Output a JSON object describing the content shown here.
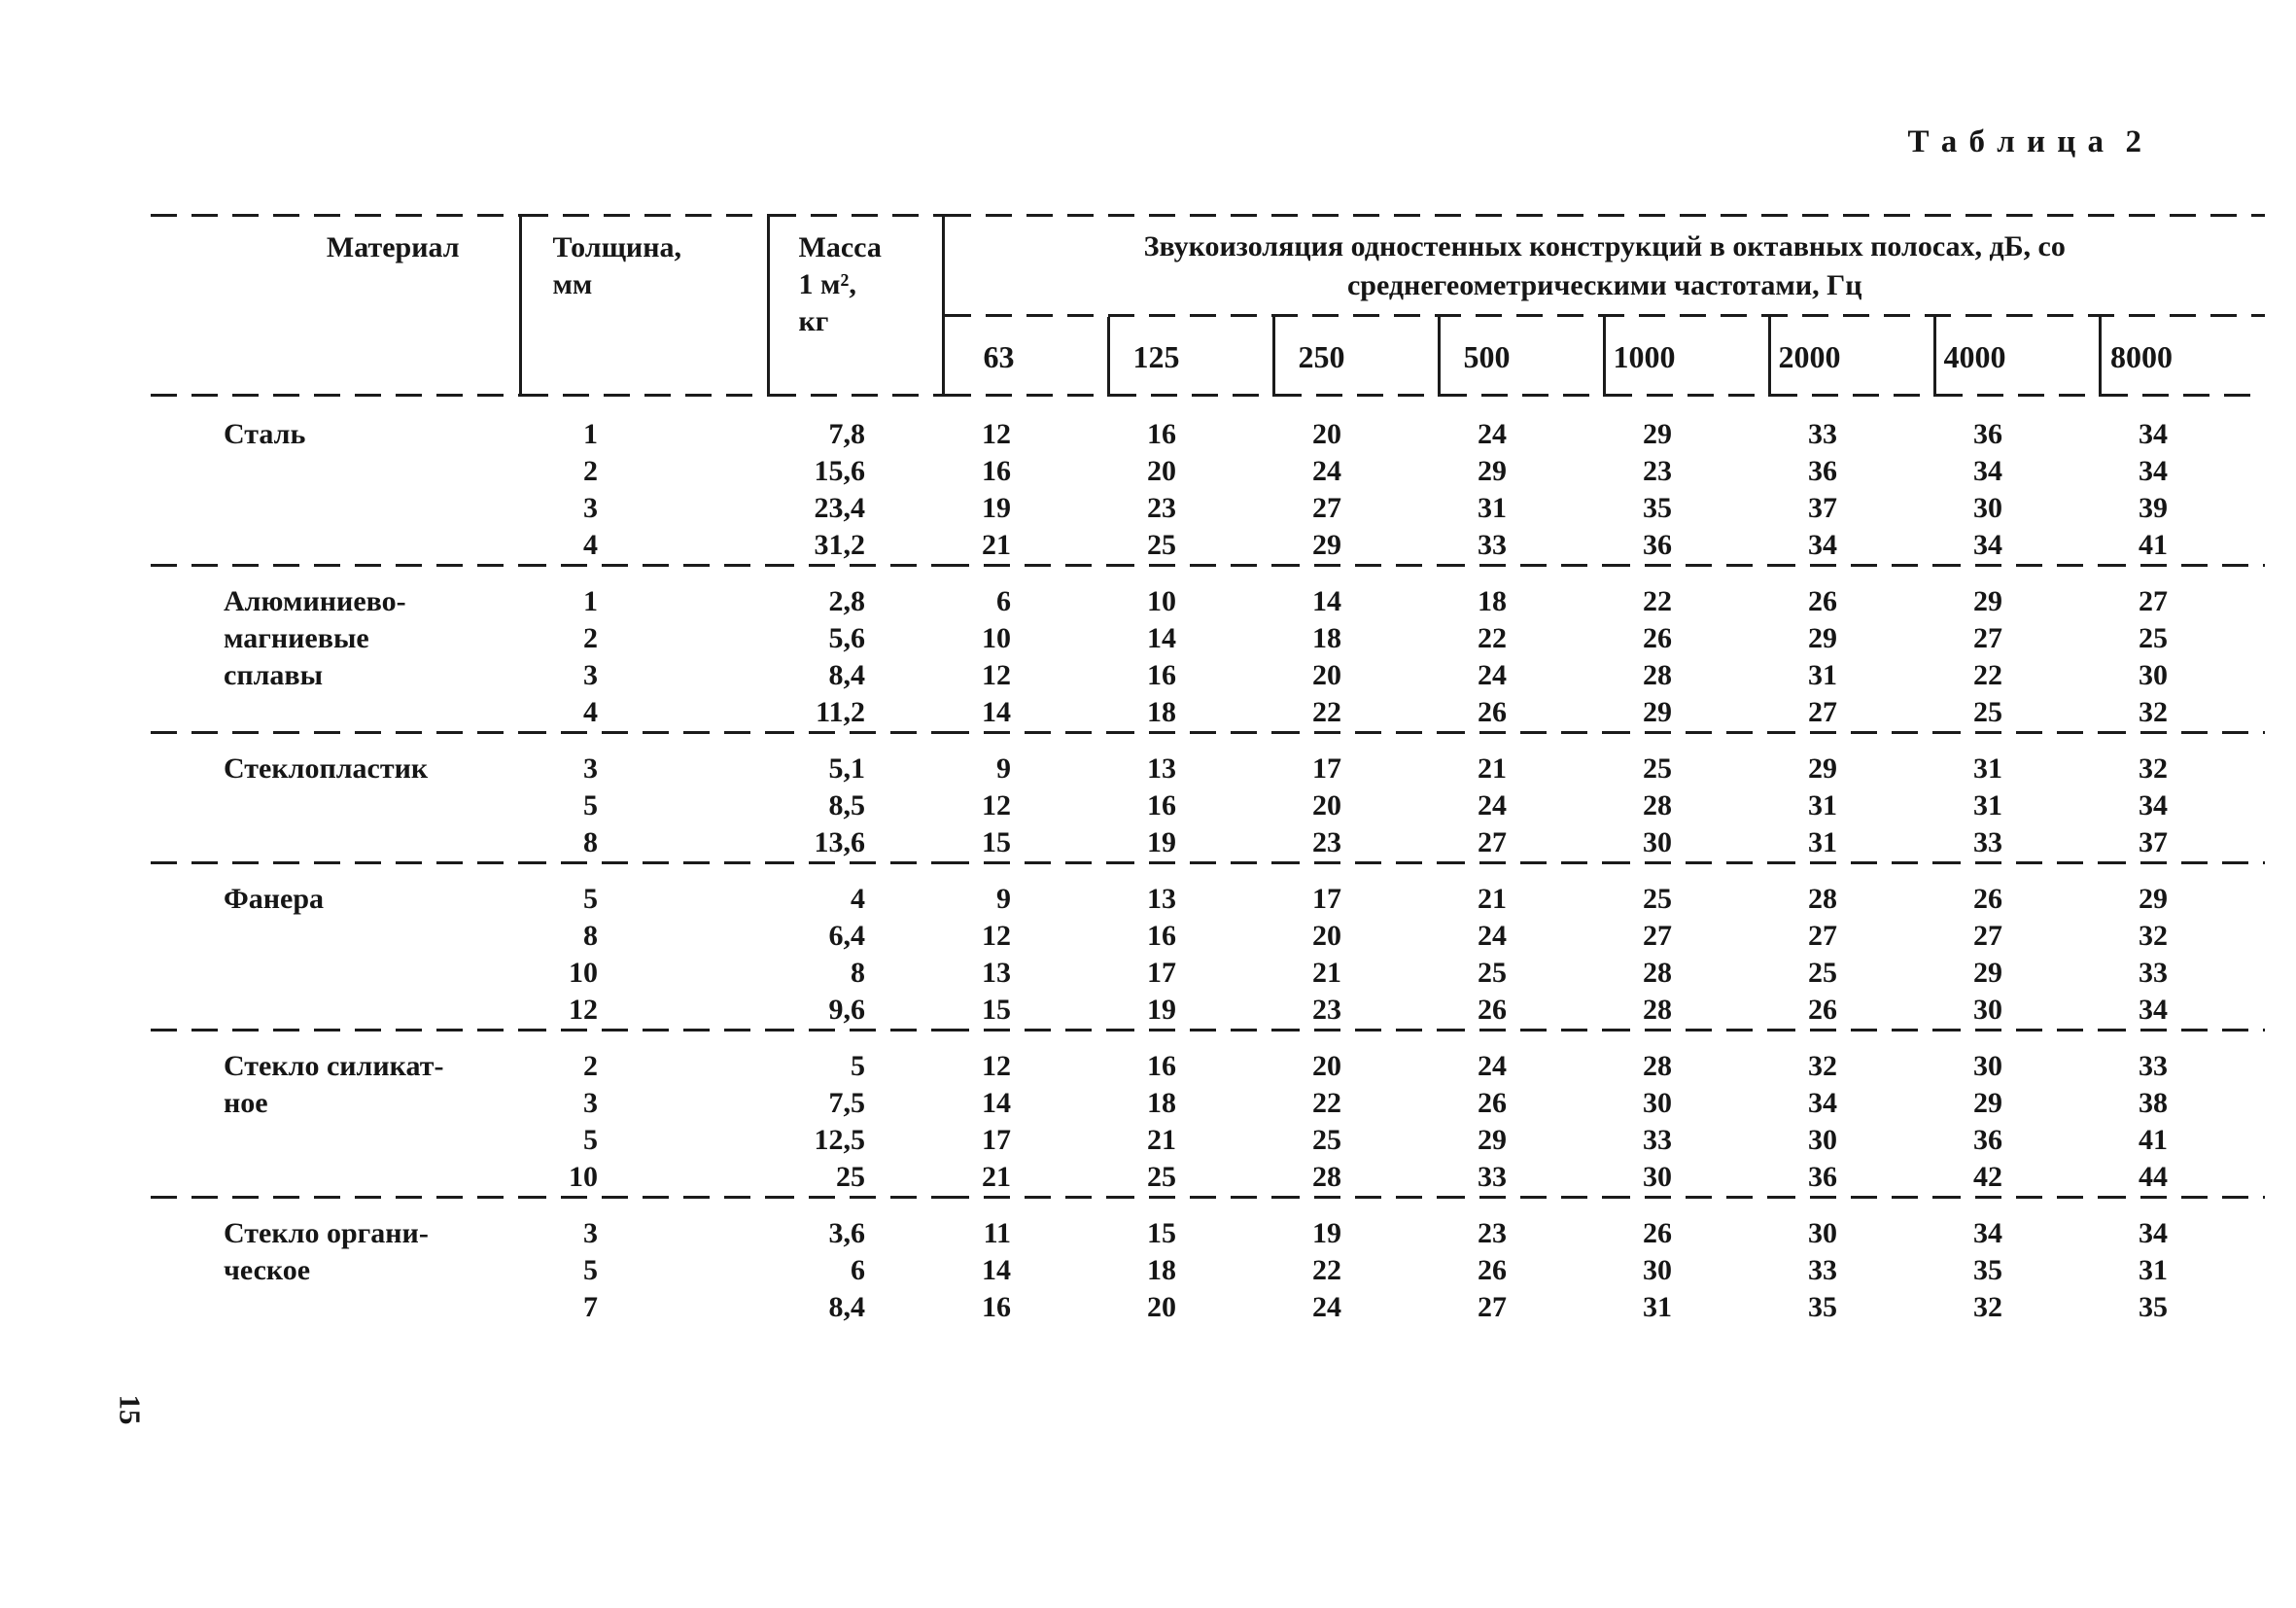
{
  "page": {
    "table_label": "Т а б л и ц а  2",
    "page_number": "15"
  },
  "table": {
    "headers": {
      "material": "Материал",
      "thickness": "Толщина,\nмм",
      "mass": "Масса\n1 м²,\nкг",
      "span": "Звукоизоляция одностенных конструкций в октавных полосах, дБ, со\nсреднегеометрическими частотами, Гц"
    },
    "frequencies": [
      "63",
      "125",
      "250",
      "500",
      "1000",
      "2000",
      "4000",
      "8000"
    ],
    "groups": [
      {
        "material": "Сталь",
        "rows": [
          {
            "thickness": "1",
            "mass": "7,8",
            "values": [
              "12",
              "16",
              "20",
              "24",
              "29",
              "33",
              "36",
              "34"
            ]
          },
          {
            "thickness": "2",
            "mass": "15,6",
            "values": [
              "16",
              "20",
              "24",
              "29",
              "23",
              "36",
              "34",
              "34"
            ]
          },
          {
            "thickness": "3",
            "mass": "23,4",
            "values": [
              "19",
              "23",
              "27",
              "31",
              "35",
              "37",
              "30",
              "39"
            ]
          },
          {
            "thickness": "4",
            "mass": "31,2",
            "values": [
              "21",
              "25",
              "29",
              "33",
              "36",
              "34",
              "34",
              "41"
            ]
          }
        ]
      },
      {
        "material": "Алюминиево-\nмагниевые\nсплавы",
        "rows": [
          {
            "thickness": "1",
            "mass": "2,8",
            "values": [
              "6",
              "10",
              "14",
              "18",
              "22",
              "26",
              "29",
              "27"
            ]
          },
          {
            "thickness": "2",
            "mass": "5,6",
            "values": [
              "10",
              "14",
              "18",
              "22",
              "26",
              "29",
              "27",
              "25"
            ]
          },
          {
            "thickness": "3",
            "mass": "8,4",
            "values": [
              "12",
              "16",
              "20",
              "24",
              "28",
              "31",
              "22",
              "30"
            ]
          },
          {
            "thickness": "4",
            "mass": "11,2",
            "values": [
              "14",
              "18",
              "22",
              "26",
              "29",
              "27",
              "25",
              "32"
            ]
          }
        ]
      },
      {
        "material": "Стеклопластик",
        "rows": [
          {
            "thickness": "3",
            "mass": "5,1",
            "values": [
              "9",
              "13",
              "17",
              "21",
              "25",
              "29",
              "31",
              "32"
            ]
          },
          {
            "thickness": "5",
            "mass": "8,5",
            "values": [
              "12",
              "16",
              "20",
              "24",
              "28",
              "31",
              "31",
              "34"
            ]
          },
          {
            "thickness": "8",
            "mass": "13,6",
            "values": [
              "15",
              "19",
              "23",
              "27",
              "30",
              "31",
              "33",
              "37"
            ]
          }
        ]
      },
      {
        "material": "Фанера",
        "rows": [
          {
            "thickness": "5",
            "mass": "4",
            "values": [
              "9",
              "13",
              "17",
              "21",
              "25",
              "28",
              "26",
              "29"
            ]
          },
          {
            "thickness": "8",
            "mass": "6,4",
            "values": [
              "12",
              "16",
              "20",
              "24",
              "27",
              "27",
              "27",
              "32"
            ]
          },
          {
            "thickness": "10",
            "mass": "8",
            "values": [
              "13",
              "17",
              "21",
              "25",
              "28",
              "25",
              "29",
              "33"
            ]
          },
          {
            "thickness": "12",
            "mass": "9,6",
            "values": [
              "15",
              "19",
              "23",
              "26",
              "28",
              "26",
              "30",
              "34"
            ]
          }
        ]
      },
      {
        "material": "Стекло силикат-\nное",
        "rows": [
          {
            "thickness": "2",
            "mass": "5",
            "values": [
              "12",
              "16",
              "20",
              "24",
              "28",
              "32",
              "30",
              "33"
            ]
          },
          {
            "thickness": "3",
            "mass": "7,5",
            "values": [
              "14",
              "18",
              "22",
              "26",
              "30",
              "34",
              "29",
              "38"
            ]
          },
          {
            "thickness": "5",
            "mass": "12,5",
            "values": [
              "17",
              "21",
              "25",
              "29",
              "33",
              "30",
              "36",
              "41"
            ]
          },
          {
            "thickness": "10",
            "mass": "25",
            "values": [
              "21",
              "25",
              "28",
              "33",
              "30",
              "36",
              "42",
              "44"
            ]
          }
        ]
      },
      {
        "material": "Стекло органи-\nческое",
        "rows": [
          {
            "thickness": "3",
            "mass": "3,6",
            "values": [
              "11",
              "15",
              "19",
              "23",
              "26",
              "30",
              "34",
              "34"
            ]
          },
          {
            "thickness": "5",
            "mass": "6",
            "values": [
              "14",
              "18",
              "22",
              "26",
              "30",
              "33",
              "35",
              "31"
            ]
          },
          {
            "thickness": "7",
            "mass": "8,4",
            "values": [
              "16",
              "20",
              "24",
              "27",
              "31",
              "35",
              "32",
              "35"
            ]
          }
        ]
      }
    ]
  }
}
